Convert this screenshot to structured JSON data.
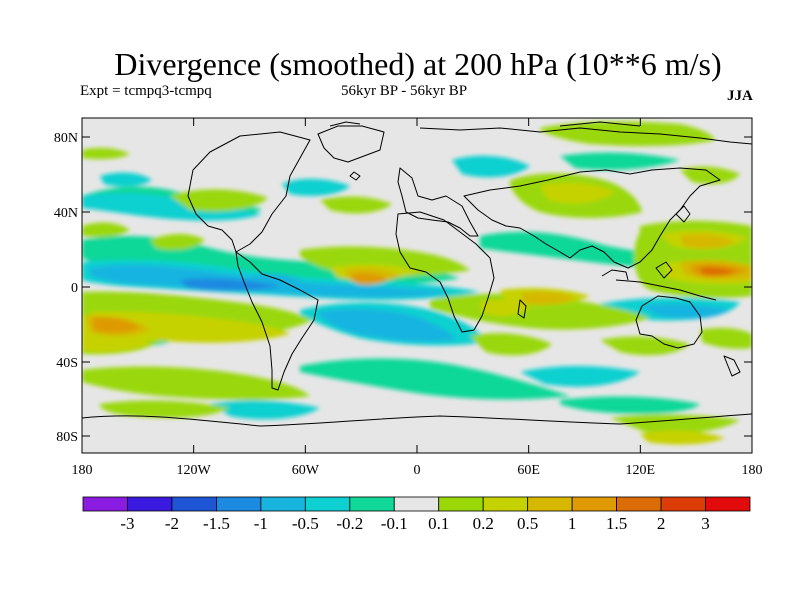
{
  "title": "Divergence (smoothed) at 200 hPa (10**6 m/s)",
  "experiment": "Expt = tcmpq3-tcmpq",
  "period": "56kyr BP - 56kyr BP",
  "season": "JJA",
  "axes": {
    "lat_ticks": [
      "80N",
      "40N",
      "0",
      "40S",
      "80S"
    ],
    "lon_ticks": [
      "180",
      "120W",
      "60W",
      "0",
      "60E",
      "120E",
      "180"
    ]
  },
  "colorbar": {
    "colors": [
      "#8a1be0",
      "#3a1ae0",
      "#1d55d6",
      "#1c8ae0",
      "#18b4e0",
      "#0ed0d0",
      "#10d898",
      "#e6e6e6",
      "#9ad808",
      "#c6d200",
      "#d6b800",
      "#de9a00",
      "#dc6c06",
      "#dc3c08",
      "#e20a0a"
    ],
    "labels": [
      "-3",
      "-2",
      "-1.5",
      "-1",
      "-0.5",
      "-0.2",
      "-0.1",
      "0.1",
      "0.2",
      "0.5",
      "1",
      "1.5",
      "2",
      "3"
    ]
  }
}
